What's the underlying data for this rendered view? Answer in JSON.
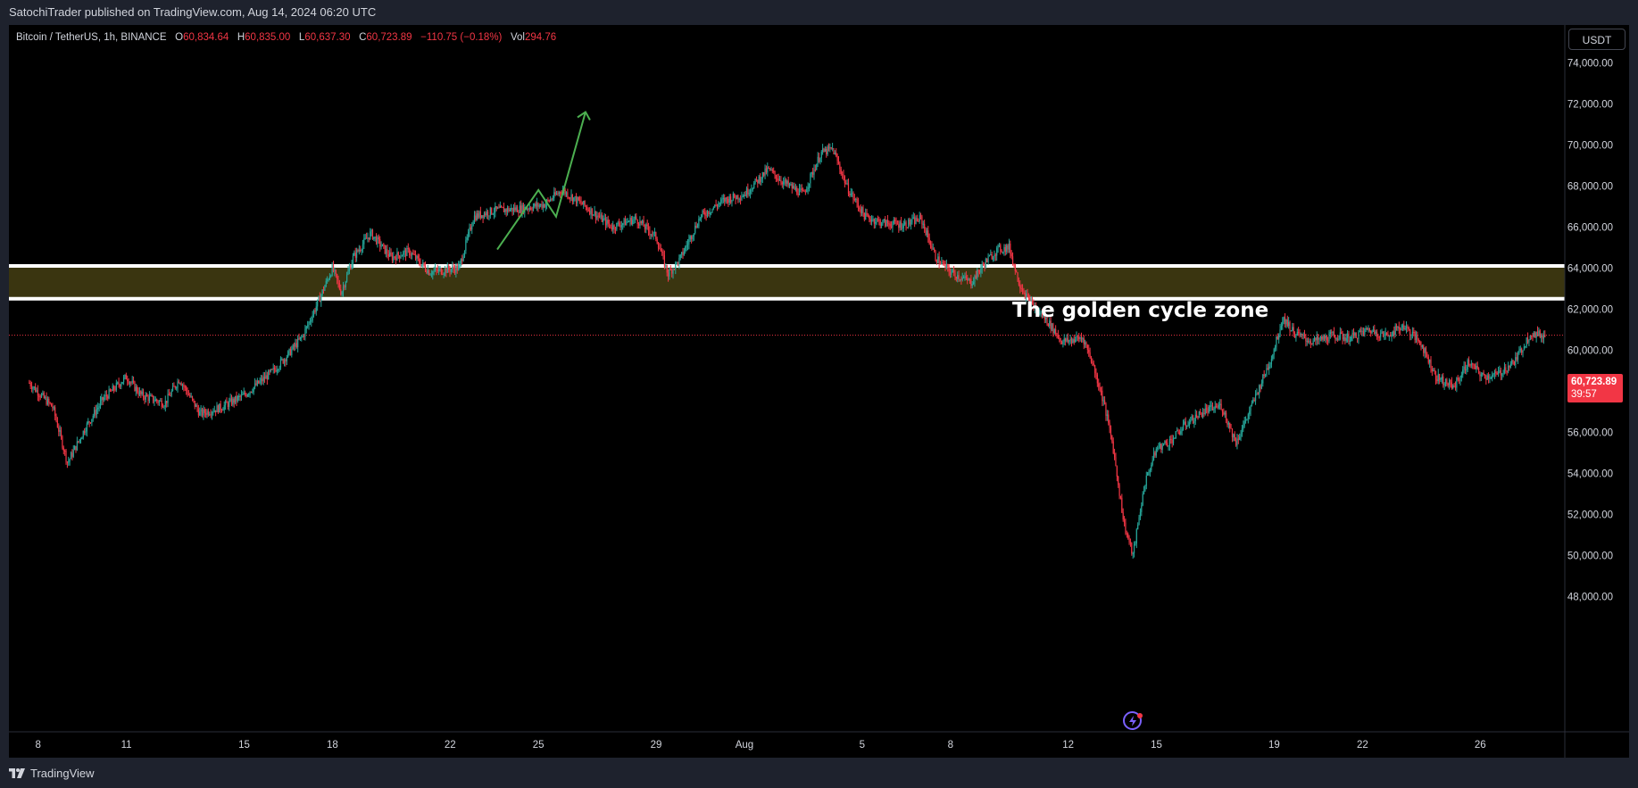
{
  "header": {
    "publisher_line": "SatochiTrader published on TradingView.com, Aug 14, 2024 06:20 UTC"
  },
  "legend": {
    "symbol": "Bitcoin / TetherUS, 1h, BINANCE",
    "o_label": "O",
    "o_value": "60,834.64",
    "h_label": "H",
    "h_value": "60,835.00",
    "l_label": "L",
    "l_value": "60,637.30",
    "c_label": "C",
    "c_value": "60,723.89",
    "change": "−110.75 (−0.18%)",
    "vol_label": "Vol",
    "vol_value": "294.76"
  },
  "currency_button": "USDT",
  "last_price": {
    "value": "60,723.89",
    "countdown": "39:57"
  },
  "zone_label": "The golden cycle zone",
  "footer": {
    "brand": "TradingView"
  },
  "colors": {
    "up": "#26a69a",
    "down": "#f23645",
    "zone_fill": "#3a3510",
    "arrow": "#4caf50",
    "background": "#000000"
  },
  "icons": {
    "logo": "tradingview-logo-icon",
    "bolt": "lightning-bolt-icon"
  },
  "chart_data": {
    "type": "candlestick",
    "title": "Bitcoin / TetherUS, 1h, BINANCE",
    "ylim": [
      46800,
      75000
    ],
    "y_ticks": [
      "74,000.00",
      "72,000.00",
      "70,000.00",
      "68,000.00",
      "66,000.00",
      "64,000.00",
      "62,000.00",
      "60,000.00",
      "58,000.00",
      "56,000.00",
      "54,000.00",
      "52,000.00",
      "50,000.00",
      "48,000.00"
    ],
    "x_ticks": [
      "8",
      "11",
      "15",
      "18",
      "22",
      "25",
      "29",
      "Aug",
      "5",
      "8",
      "12",
      "15",
      "19",
      "22",
      "26"
    ],
    "x_tick_days": [
      0,
      3,
      7,
      10,
      14,
      17,
      21,
      24,
      28,
      31,
      35,
      38,
      42,
      45,
      49
    ],
    "last_price": 60723.89,
    "zone": {
      "low": 62500,
      "high": 64100
    },
    "path": [
      [
        -0.3,
        58400
      ],
      [
        0.5,
        57200
      ],
      [
        1.0,
        54500
      ],
      [
        1.6,
        56200
      ],
      [
        2.2,
        57600
      ],
      [
        3.0,
        58700
      ],
      [
        3.5,
        57800
      ],
      [
        4.3,
        57400
      ],
      [
        4.8,
        58600
      ],
      [
        5.5,
        56900
      ],
      [
        6.2,
        57200
      ],
      [
        7.0,
        57800
      ],
      [
        8.0,
        59000
      ],
      [
        8.5,
        59800
      ],
      [
        9.0,
        60700
      ],
      [
        9.5,
        62300
      ],
      [
        10.0,
        64000
      ],
      [
        10.3,
        62800
      ],
      [
        10.7,
        64500
      ],
      [
        11.3,
        65700
      ],
      [
        12.0,
        64500
      ],
      [
        12.6,
        64800
      ],
      [
        13.3,
        63800
      ],
      [
        13.8,
        63900
      ],
      [
        14.3,
        64000
      ],
      [
        14.8,
        66500
      ],
      [
        15.5,
        66800
      ],
      [
        16.5,
        66900
      ],
      [
        17.2,
        67100
      ],
      [
        17.8,
        67800
      ],
      [
        18.5,
        67100
      ],
      [
        19.5,
        66000
      ],
      [
        20.3,
        66400
      ],
      [
        21.0,
        65500
      ],
      [
        21.4,
        63700
      ],
      [
        21.8,
        64400
      ],
      [
        22.5,
        66500
      ],
      [
        23.3,
        67300
      ],
      [
        24.0,
        67600
      ],
      [
        24.8,
        68800
      ],
      [
        25.4,
        68100
      ],
      [
        26.0,
        67600
      ],
      [
        26.6,
        69600
      ],
      [
        27.0,
        69800
      ],
      [
        27.5,
        67900
      ],
      [
        28.1,
        66500
      ],
      [
        28.7,
        66200
      ],
      [
        29.4,
        66100
      ],
      [
        30.0,
        66400
      ],
      [
        30.5,
        64500
      ],
      [
        31.0,
        63800
      ],
      [
        31.7,
        63300
      ],
      [
        32.2,
        64300
      ],
      [
        32.6,
        64900
      ],
      [
        33.0,
        65000
      ],
      [
        33.3,
        63400
      ],
      [
        33.7,
        62300
      ],
      [
        34.3,
        61400
      ],
      [
        34.8,
        60400
      ],
      [
        35.5,
        60600
      ],
      [
        35.8,
        59500
      ],
      [
        36.2,
        57500
      ],
      [
        36.5,
        55500
      ],
      [
        36.9,
        51500
      ],
      [
        37.2,
        50000
      ],
      [
        37.6,
        53500
      ],
      [
        38.0,
        55200
      ],
      [
        38.5,
        55600
      ],
      [
        39.0,
        56400
      ],
      [
        39.6,
        57000
      ],
      [
        40.2,
        57300
      ],
      [
        40.7,
        55500
      ],
      [
        41.1,
        56800
      ],
      [
        41.5,
        58200
      ],
      [
        41.9,
        59600
      ],
      [
        42.3,
        61600
      ],
      [
        42.7,
        60800
      ],
      [
        43.3,
        60400
      ],
      [
        44.0,
        60700
      ],
      [
        44.6,
        60600
      ],
      [
        45.2,
        61000
      ],
      [
        45.8,
        60700
      ],
      [
        46.4,
        61200
      ],
      [
        47.0,
        60300
      ],
      [
        47.5,
        58700
      ],
      [
        48.1,
        58200
      ],
      [
        48.6,
        59400
      ],
      [
        49.1,
        58700
      ],
      [
        49.6,
        58800
      ],
      [
        50.2,
        59500
      ],
      [
        50.7,
        60800
      ],
      [
        51.2,
        60700
      ]
    ],
    "projection_arrow": [
      [
        15.6,
        64900
      ],
      [
        17.0,
        67800
      ],
      [
        17.6,
        66500
      ],
      [
        18.6,
        71600
      ]
    ]
  }
}
